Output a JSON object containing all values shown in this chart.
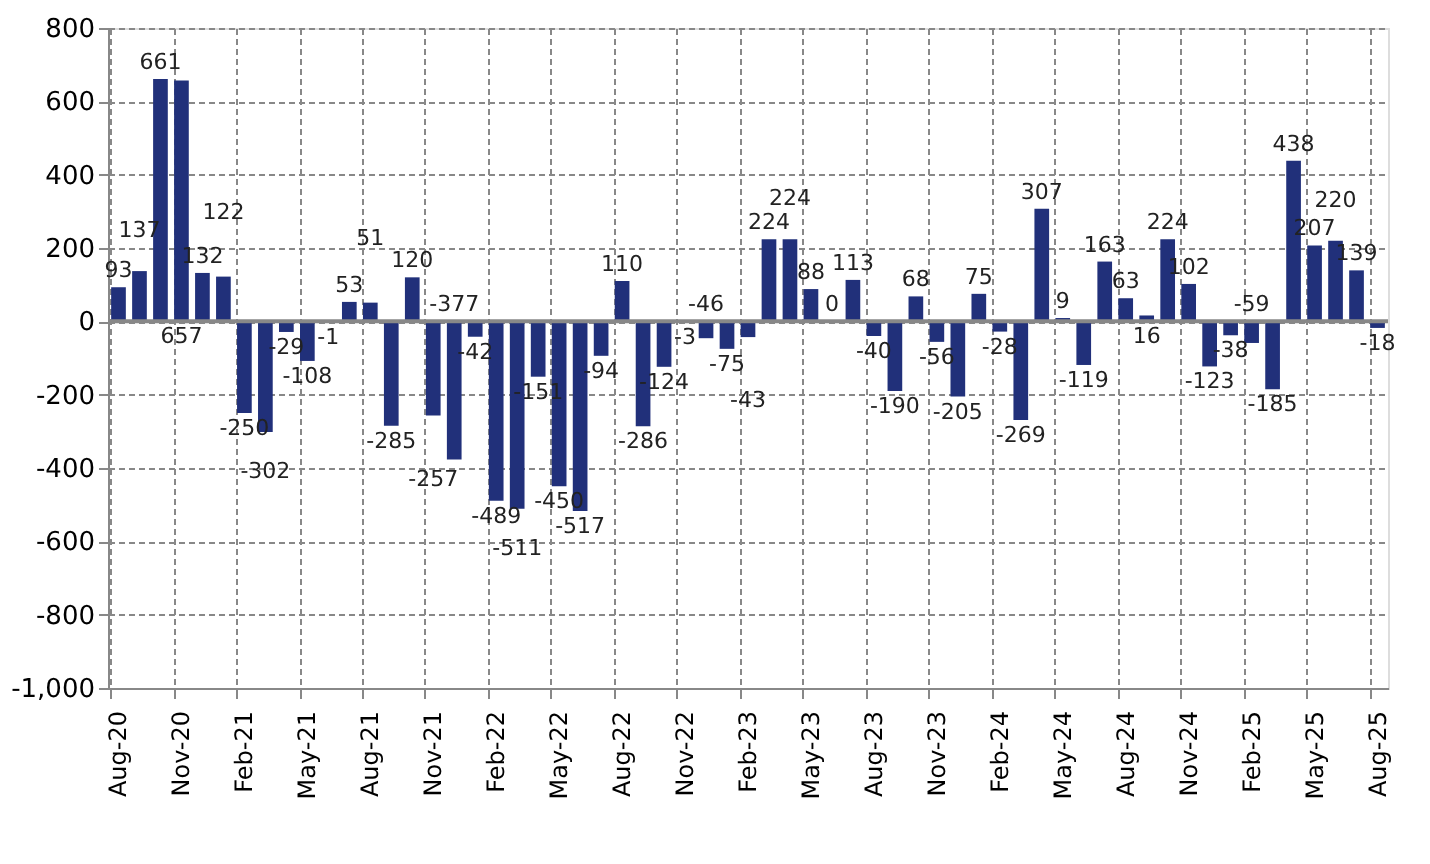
{
  "chart_data": {
    "type": "bar",
    "categories": [
      "Aug-20",
      null,
      null,
      "Nov-20",
      null,
      null,
      "Feb-21",
      null,
      null,
      "May-21",
      null,
      null,
      "Aug-21",
      null,
      null,
      "Nov-21",
      null,
      null,
      "Feb-22",
      null,
      null,
      "May-22",
      null,
      null,
      "Aug-22",
      null,
      null,
      "Nov-22",
      null,
      null,
      "Feb-23",
      null,
      null,
      "May-23",
      null,
      null,
      "Aug-23",
      null,
      null,
      "Nov-23",
      null,
      null,
      "Feb-24",
      null,
      null,
      "May-24",
      null,
      null,
      "Aug-24",
      null,
      null,
      "Nov-24",
      null,
      null,
      "Feb-25",
      null,
      null,
      "May-25",
      null,
      null,
      "Aug-25"
    ],
    "values": [
      93,
      137,
      661,
      657,
      132,
      122,
      -250,
      -302,
      -29,
      -108,
      -1,
      53,
      51,
      -285,
      120,
      -257,
      -377,
      -42,
      -489,
      -511,
      -151,
      -450,
      -517,
      -94,
      110,
      -286,
      -124,
      -3,
      -46,
      -75,
      -43,
      224,
      224,
      88,
      0,
      113,
      -40,
      -190,
      68,
      -56,
      -205,
      75,
      -28,
      -269,
      307,
      9,
      -119,
      163,
      63,
      16,
      224,
      102,
      -123,
      -38,
      -59,
      -185,
      438,
      207,
      220,
      139,
      -18
    ],
    "color": "#21307a",
    "ylim": [
      -1000,
      800
    ],
    "yticks": [
      {
        "value": -1000,
        "label": "-1,000"
      },
      -800,
      -600,
      -400,
      -200,
      0,
      200,
      400,
      600,
      800
    ],
    "grid": true,
    "data_labels": true
  }
}
